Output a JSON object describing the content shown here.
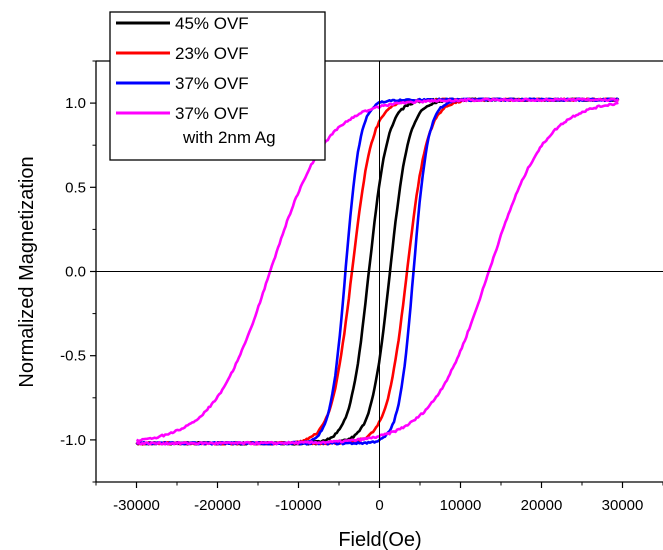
{
  "chart_data": {
    "type": "line",
    "title": "",
    "xlabel": "Field(Oe)",
    "ylabel": "Normalized Magnetization",
    "xlim": [
      -35000,
      35000
    ],
    "ylim": [
      -1.25,
      1.25
    ],
    "x_ticks": [
      -30000,
      -20000,
      -10000,
      0,
      10000,
      20000,
      30000
    ],
    "x_tick_labels": [
      "-30000",
      "-20000",
      "-10000",
      "0",
      "10000",
      "20000",
      "30000"
    ],
    "y_ticks": [
      -1.0,
      -0.5,
      0.0,
      0.5,
      1.0
    ],
    "y_tick_labels": [
      "-1.0",
      "-0.5",
      "0.0",
      "0.5",
      "1.0"
    ],
    "grid": false,
    "zero_lines": true,
    "legend_position": "top-left",
    "series": [
      {
        "name": "45% OVF",
        "color": "#000000",
        "hc": 1300,
        "w": 2300,
        "ms": 1.02,
        "descending": {
          "x": [
            29500,
            10000,
            7500,
            5000,
            3500,
            2500,
            1300,
            0,
            -1500,
            -3000,
            -5000,
            -7000,
            -9000,
            -12000,
            -30000
          ],
          "y": [
            1.0,
            1.0,
            0.97,
            0.89,
            0.74,
            0.56,
            0.3,
            0.0,
            -0.3,
            -0.56,
            -0.79,
            -0.92,
            -0.97,
            -1.0,
            -1.02
          ]
        },
        "ascending": {
          "x": [
            -30000,
            -10000,
            -7500,
            -5000,
            -3500,
            -2500,
            -1300,
            0,
            1500,
            3000,
            5000,
            7000,
            9000,
            12000,
            29500
          ],
          "y": [
            -1.02,
            -1.0,
            -0.97,
            -0.89,
            -0.74,
            -0.56,
            -0.3,
            0.0,
            0.3,
            0.56,
            0.79,
            0.92,
            0.97,
            1.0,
            1.0
          ]
        }
      },
      {
        "name": "23% OVF",
        "color": "#ff0000",
        "hc": 3400,
        "w": 2500,
        "ms": 1.02,
        "descending": {
          "x": [
            29500,
            12000,
            9000,
            7000,
            5000,
            3400,
            1500,
            0,
            -1500,
            -3400,
            -5500,
            -7500,
            -9500,
            -12000,
            -30000
          ],
          "y": [
            1.0,
            1.0,
            0.97,
            0.86,
            0.59,
            0.0,
            -0.59,
            -0.8,
            -0.89,
            -0.96,
            -0.99,
            -1.0,
            -1.01,
            -1.02,
            -1.03
          ]
        },
        "ascending": {
          "x": [
            -30000,
            -12000,
            -9000,
            -7000,
            -5000,
            -3400,
            -1500,
            0,
            1500,
            3400,
            5500,
            7500,
            9500,
            12000,
            29500
          ],
          "y": [
            -1.03,
            -1.0,
            -0.97,
            -0.86,
            -0.59,
            0.0,
            0.59,
            0.8,
            0.89,
            0.96,
            0.99,
            1.0,
            1.01,
            1.02,
            1.0
          ]
        }
      },
      {
        "name": "37% OVF",
        "color": "#0000ff",
        "hc": 4200,
        "w": 1800,
        "ms": 1.02,
        "descending": {
          "x": [
            29500,
            12000,
            8000,
            6500,
            5300,
            4200,
            3000,
            1500,
            0,
            -2000,
            -4000,
            -6000,
            -9000,
            -14000,
            -30000
          ],
          "y": [
            1.02,
            1.02,
            0.98,
            0.88,
            0.63,
            0.0,
            -0.63,
            -0.89,
            -0.96,
            -0.99,
            -1.01,
            -1.02,
            -1.03,
            -1.04,
            -1.04
          ]
        },
        "ascending": {
          "x": [
            -30000,
            -12000,
            -8000,
            -6500,
            -5300,
            -4200,
            -3000,
            -1500,
            0,
            2000,
            4000,
            6000,
            9000,
            14000,
            29500
          ],
          "y": [
            -1.04,
            -1.02,
            -0.98,
            -0.88,
            -0.63,
            0.0,
            0.63,
            0.89,
            0.96,
            0.99,
            1.01,
            1.02,
            1.03,
            1.03,
            1.02
          ]
        }
      },
      {
        "name": "37% OVF",
        "name_line2": "with 2nm Ag",
        "color": "#ff00ff",
        "hc": 13500,
        "w": 7000,
        "ms": 1.02,
        "descending": {
          "x": [
            29500,
            24000,
            21000,
            18500,
            16000,
            13500,
            11000,
            8000,
            5000,
            0,
            -5000,
            -10000,
            -15000,
            -22000,
            -30000
          ],
          "y": [
            0.97,
            0.98,
            0.87,
            0.67,
            0.36,
            0.0,
            -0.36,
            -0.67,
            -0.83,
            -0.94,
            -0.99,
            -1.01,
            -1.02,
            -1.04,
            -1.02
          ]
        },
        "ascending": {
          "x": [
            -30000,
            -24000,
            -21000,
            -18500,
            -16000,
            -13500,
            -11000,
            -8000,
            -5000,
            0,
            5000,
            10000,
            15000,
            22000,
            29500
          ],
          "y": [
            -1.02,
            -0.98,
            -0.87,
            -0.67,
            -0.36,
            0.0,
            0.36,
            0.67,
            0.83,
            0.94,
            0.99,
            1.01,
            1.02,
            1.03,
            0.98
          ]
        }
      }
    ]
  }
}
